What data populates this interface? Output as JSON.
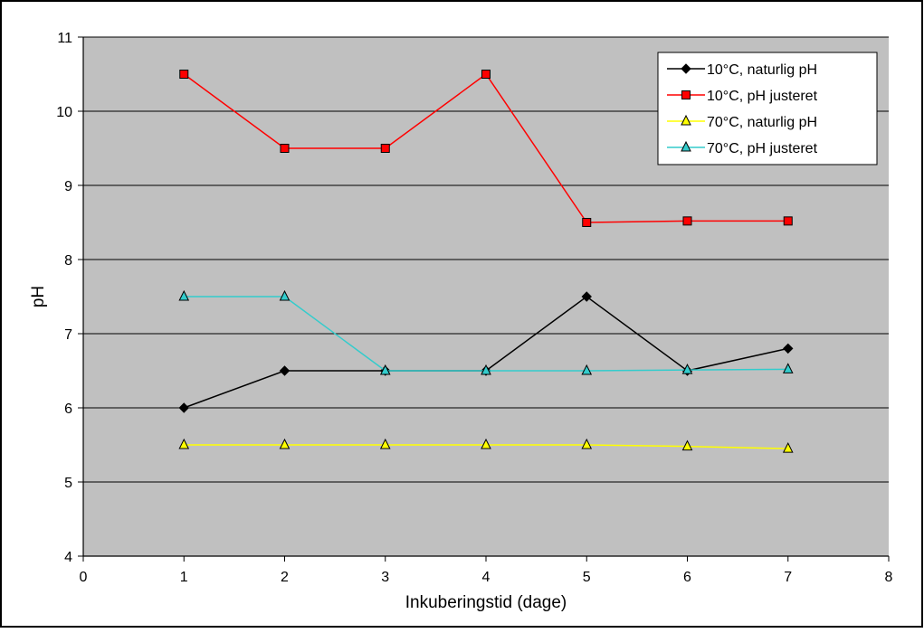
{
  "chart_data": {
    "type": "line",
    "title": "",
    "xlabel": "Inkuberingstid (dage)",
    "ylabel": "pH",
    "xlim": [
      0,
      8
    ],
    "ylim": [
      4,
      11
    ],
    "xticks": [
      0,
      1,
      2,
      3,
      4,
      5,
      6,
      7,
      8
    ],
    "yticks": [
      4,
      5,
      6,
      7,
      8,
      9,
      10,
      11
    ],
    "grid": "horizontal",
    "plot_background": "#c0c0c0",
    "legend_position": "top-right",
    "series": [
      {
        "name": "10°C, naturlig pH",
        "color": "#000000",
        "marker": "diamond",
        "marker_fill": "#000000",
        "x": [
          1,
          2,
          3,
          4,
          5,
          6,
          7
        ],
        "y": [
          6.0,
          6.5,
          6.5,
          6.5,
          7.5,
          6.5,
          6.8
        ]
      },
      {
        "name": "10°C, pH justeret",
        "color": "#ff0000",
        "marker": "square",
        "marker_fill": "#ff0000",
        "x": [
          1,
          2,
          3,
          4,
          5,
          6,
          7
        ],
        "y": [
          10.5,
          9.5,
          9.5,
          10.5,
          8.5,
          8.52,
          8.52
        ]
      },
      {
        "name": "70°C, naturlig pH",
        "color": "#ffff00",
        "marker": "triangle",
        "marker_fill": "#ffff00",
        "x": [
          1,
          2,
          3,
          4,
          5,
          6,
          7
        ],
        "y": [
          5.5,
          5.5,
          5.5,
          5.5,
          5.5,
          5.48,
          5.45
        ]
      },
      {
        "name": "70°C, pH justeret",
        "color": "#33cccc",
        "marker": "triangle",
        "marker_fill": "#33cccc",
        "x": [
          1,
          2,
          3,
          4,
          5,
          6,
          7
        ],
        "y": [
          7.5,
          7.5,
          6.5,
          6.5,
          6.5,
          6.51,
          6.52
        ]
      }
    ]
  }
}
